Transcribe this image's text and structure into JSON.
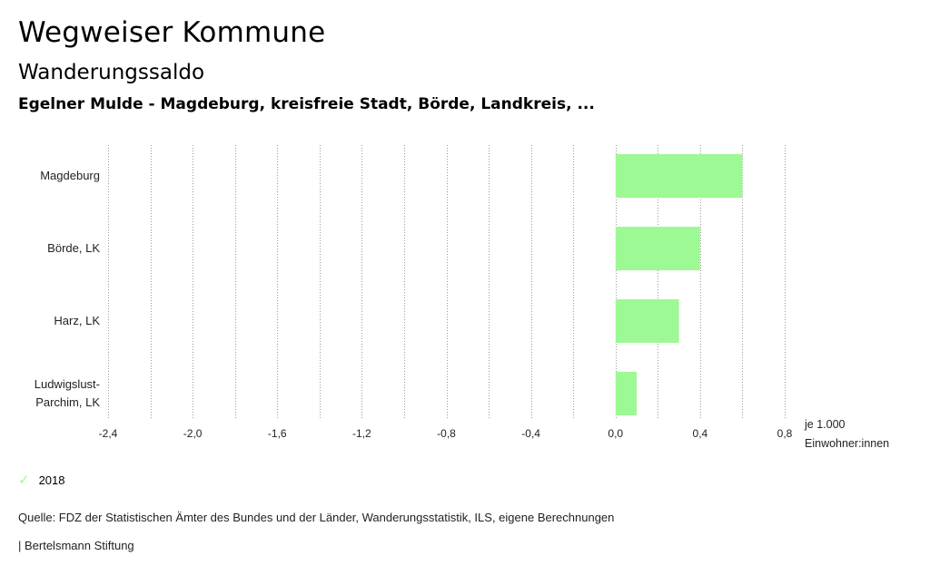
{
  "header": {
    "title": "Wegweiser Kommune",
    "subtitle": "Wanderungssaldo",
    "region": "Egelner Mulde - Magdeburg, kreisfreie Stadt, Börde, Landkreis, ..."
  },
  "chart_data": {
    "type": "bar",
    "orientation": "horizontal",
    "categories": [
      "Magdeburg",
      "Börde, LK",
      "Harz, LK",
      "Ludwigslust-Parchim, LK"
    ],
    "category_display_lines": [
      [
        "Magdeburg"
      ],
      [
        "Börde, LK"
      ],
      [
        "Harz, LK"
      ],
      [
        "Ludwigslust-",
        "Parchim, LK"
      ]
    ],
    "series": [
      {
        "name": "2018",
        "values": [
          0.6,
          0.4,
          0.3,
          0.1
        ],
        "color": "#9cf994"
      }
    ],
    "xlim": [
      -2.4,
      0.8
    ],
    "major_ticks": [
      -2.4,
      -2.0,
      -1.6,
      -1.2,
      -0.8,
      -0.4,
      0.0,
      0.4,
      0.8
    ],
    "tick_labels": [
      "-2,4",
      "-2,0",
      "-1,6",
      "-1,2",
      "-0,8",
      "-0,4",
      "0,0",
      "0,4",
      "0,8"
    ],
    "grid_step": 0.2,
    "grid": true,
    "unit_label_lines": [
      "je 1.000",
      "Einwohner:innen"
    ]
  },
  "legend": {
    "items": [
      {
        "label": "2018",
        "icon": "check-icon",
        "color": "#9cf994"
      }
    ]
  },
  "footer": {
    "source": "Quelle: FDZ der Statistischen Ämter des Bundes und der Länder, Wanderungsstatistik, ILS, eigene Berechnungen",
    "credit": "| Bertelsmann Stiftung"
  }
}
